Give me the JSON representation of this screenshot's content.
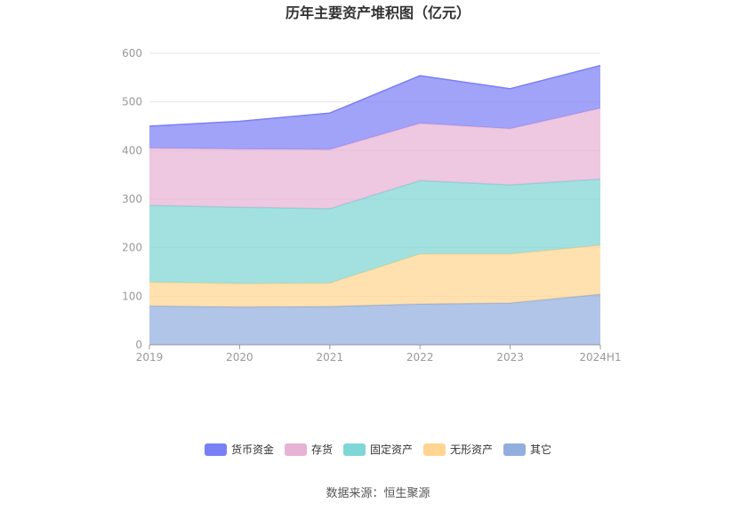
{
  "chart_data": {
    "type": "area",
    "stacked": true,
    "title": "历年主要资产堆积图（亿元）",
    "categories": [
      "2019",
      "2020",
      "2021",
      "2022",
      "2023",
      "2024H1"
    ],
    "ylim": [
      0,
      600
    ],
    "yticks": [
      0,
      100,
      200,
      300,
      400,
      500,
      600
    ],
    "grid": true,
    "legend_position": "bottom",
    "series": [
      {
        "name": "其它",
        "color": "#92aede",
        "values": [
          80,
          78,
          79,
          84,
          86,
          104
        ]
      },
      {
        "name": "无形资产",
        "color": "#ffd591",
        "values": [
          49,
          48,
          48,
          103,
          101,
          101
        ]
      },
      {
        "name": "固定资产",
        "color": "#7fd6d6",
        "values": [
          158,
          157,
          153,
          151,
          142,
          136
        ]
      },
      {
        "name": "存货",
        "color": "#e8b2d5",
        "values": [
          118,
          120,
          122,
          118,
          116,
          146
        ]
      },
      {
        "name": "货币资金",
        "color": "#7b7ff5",
        "values": [
          45,
          57,
          75,
          98,
          82,
          88
        ]
      }
    ],
    "legend_order": [
      "货币资金",
      "存货",
      "固定资产",
      "无形资产",
      "其它"
    ]
  },
  "source_text": "数据来源：恒生聚源"
}
